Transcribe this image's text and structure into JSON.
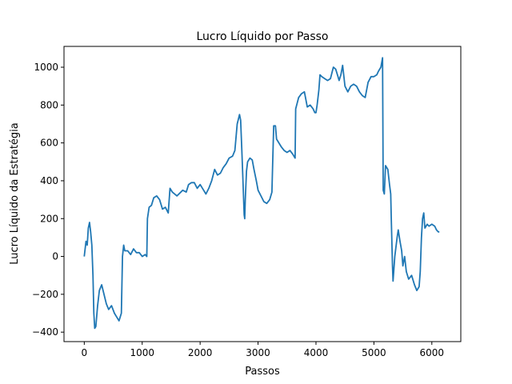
{
  "chart_data": {
    "type": "line",
    "title": "Lucro Líquido por Passo",
    "xlabel": "Passos",
    "ylabel": "Lucro Líquido da Estratégia",
    "xlim": [
      -350,
      6500
    ],
    "ylim": [
      -450,
      1110
    ],
    "x_ticks": [
      0,
      1000,
      2000,
      3000,
      4000,
      5000,
      6000
    ],
    "y_ticks": [
      -400,
      -200,
      0,
      200,
      400,
      600,
      800,
      1000
    ],
    "grid": false,
    "legend": "none",
    "series": [
      {
        "color": "#1f77b4",
        "points": [
          [
            0,
            0
          ],
          [
            30,
            80
          ],
          [
            50,
            60
          ],
          [
            70,
            150
          ],
          [
            90,
            180
          ],
          [
            110,
            130
          ],
          [
            130,
            60
          ],
          [
            150,
            -100
          ],
          [
            165,
            -300
          ],
          [
            180,
            -380
          ],
          [
            200,
            -370
          ],
          [
            230,
            -260
          ],
          [
            260,
            -180
          ],
          [
            300,
            -150
          ],
          [
            340,
            -200
          ],
          [
            380,
            -250
          ],
          [
            420,
            -280
          ],
          [
            470,
            -260
          ],
          [
            520,
            -300
          ],
          [
            560,
            -320
          ],
          [
            600,
            -340
          ],
          [
            640,
            -300
          ],
          [
            660,
            0
          ],
          [
            680,
            60
          ],
          [
            700,
            30
          ],
          [
            750,
            30
          ],
          [
            800,
            10
          ],
          [
            850,
            40
          ],
          [
            900,
            20
          ],
          [
            950,
            20
          ],
          [
            1000,
            0
          ],
          [
            1050,
            10
          ],
          [
            1080,
            0
          ],
          [
            1090,
            200
          ],
          [
            1120,
            260
          ],
          [
            1160,
            270
          ],
          [
            1200,
            310
          ],
          [
            1250,
            320
          ],
          [
            1300,
            300
          ],
          [
            1350,
            250
          ],
          [
            1400,
            260
          ],
          [
            1450,
            230
          ],
          [
            1480,
            360
          ],
          [
            1520,
            340
          ],
          [
            1600,
            320
          ],
          [
            1700,
            350
          ],
          [
            1760,
            340
          ],
          [
            1800,
            380
          ],
          [
            1850,
            390
          ],
          [
            1900,
            390
          ],
          [
            1950,
            360
          ],
          [
            2000,
            380
          ],
          [
            2100,
            330
          ],
          [
            2150,
            360
          ],
          [
            2200,
            400
          ],
          [
            2250,
            460
          ],
          [
            2300,
            430
          ],
          [
            2350,
            440
          ],
          [
            2400,
            470
          ],
          [
            2450,
            490
          ],
          [
            2500,
            520
          ],
          [
            2560,
            530
          ],
          [
            2600,
            560
          ],
          [
            2640,
            700
          ],
          [
            2680,
            750
          ],
          [
            2700,
            720
          ],
          [
            2720,
            560
          ],
          [
            2740,
            400
          ],
          [
            2760,
            220
          ],
          [
            2770,
            200
          ],
          [
            2780,
            300
          ],
          [
            2800,
            450
          ],
          [
            2820,
            500
          ],
          [
            2860,
            520
          ],
          [
            2900,
            510
          ],
          [
            2930,
            460
          ],
          [
            2970,
            400
          ],
          [
            3000,
            350
          ],
          [
            3050,
            320
          ],
          [
            3100,
            290
          ],
          [
            3150,
            280
          ],
          [
            3200,
            300
          ],
          [
            3240,
            340
          ],
          [
            3250,
            470
          ],
          [
            3270,
            690
          ],
          [
            3300,
            690
          ],
          [
            3320,
            620
          ],
          [
            3360,
            600
          ],
          [
            3400,
            580
          ],
          [
            3450,
            560
          ],
          [
            3500,
            550
          ],
          [
            3550,
            560
          ],
          [
            3600,
            540
          ],
          [
            3640,
            520
          ],
          [
            3650,
            780
          ],
          [
            3700,
            840
          ],
          [
            3750,
            860
          ],
          [
            3800,
            870
          ],
          [
            3850,
            790
          ],
          [
            3900,
            800
          ],
          [
            3950,
            780
          ],
          [
            3980,
            760
          ],
          [
            4000,
            760
          ],
          [
            4020,
            800
          ],
          [
            4050,
            880
          ],
          [
            4070,
            960
          ],
          [
            4100,
            950
          ],
          [
            4150,
            940
          ],
          [
            4200,
            930
          ],
          [
            4250,
            940
          ],
          [
            4300,
            1000
          ],
          [
            4340,
            990
          ],
          [
            4380,
            950
          ],
          [
            4400,
            930
          ],
          [
            4430,
            960
          ],
          [
            4460,
            1010
          ],
          [
            4500,
            900
          ],
          [
            4550,
            870
          ],
          [
            4600,
            900
          ],
          [
            4650,
            910
          ],
          [
            4700,
            900
          ],
          [
            4750,
            870
          ],
          [
            4800,
            850
          ],
          [
            4850,
            840
          ],
          [
            4900,
            920
          ],
          [
            4950,
            950
          ],
          [
            5000,
            950
          ],
          [
            5050,
            960
          ],
          [
            5080,
            980
          ],
          [
            5120,
            1000
          ],
          [
            5150,
            1050
          ],
          [
            5160,
            350
          ],
          [
            5180,
            330
          ],
          [
            5200,
            480
          ],
          [
            5240,
            460
          ],
          [
            5270,
            380
          ],
          [
            5290,
            330
          ],
          [
            5300,
            200
          ],
          [
            5320,
            -50
          ],
          [
            5330,
            -130
          ],
          [
            5360,
            0
          ],
          [
            5400,
            100
          ],
          [
            5420,
            140
          ],
          [
            5450,
            80
          ],
          [
            5480,
            30
          ],
          [
            5500,
            -50
          ],
          [
            5530,
            0
          ],
          [
            5560,
            -80
          ],
          [
            5600,
            -120
          ],
          [
            5650,
            -100
          ],
          [
            5700,
            -150
          ],
          [
            5740,
            -180
          ],
          [
            5780,
            -160
          ],
          [
            5800,
            -80
          ],
          [
            5820,
            100
          ],
          [
            5840,
            200
          ],
          [
            5860,
            230
          ],
          [
            5880,
            150
          ],
          [
            5920,
            170
          ],
          [
            5950,
            160
          ],
          [
            6000,
            170
          ],
          [
            6050,
            160
          ],
          [
            6080,
            140
          ],
          [
            6110,
            130
          ],
          [
            6130,
            130
          ]
        ]
      }
    ]
  }
}
